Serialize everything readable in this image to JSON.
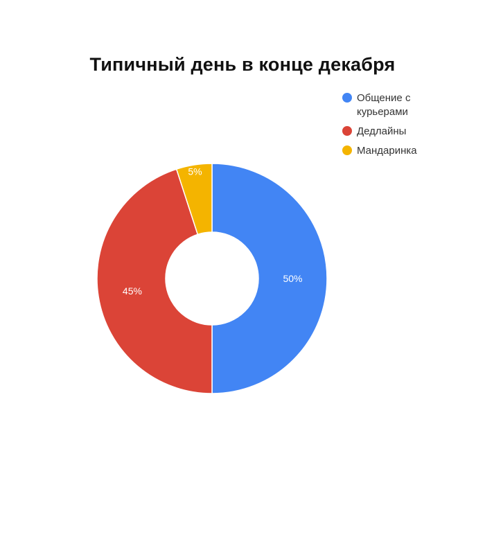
{
  "chart_data": {
    "type": "pie",
    "title": "Типичный день в конце декабря",
    "hole": true,
    "legend_position": "top-right",
    "slices": [
      {
        "label": "Общение с курьерами",
        "value": 50,
        "display": "50%",
        "color": "#4285f4"
      },
      {
        "label": "Дедлайны",
        "value": 45,
        "display": "45%",
        "color": "#db4437"
      },
      {
        "label": "Мандаринка",
        "value": 5,
        "display": "5%",
        "color": "#f4b400"
      }
    ]
  }
}
